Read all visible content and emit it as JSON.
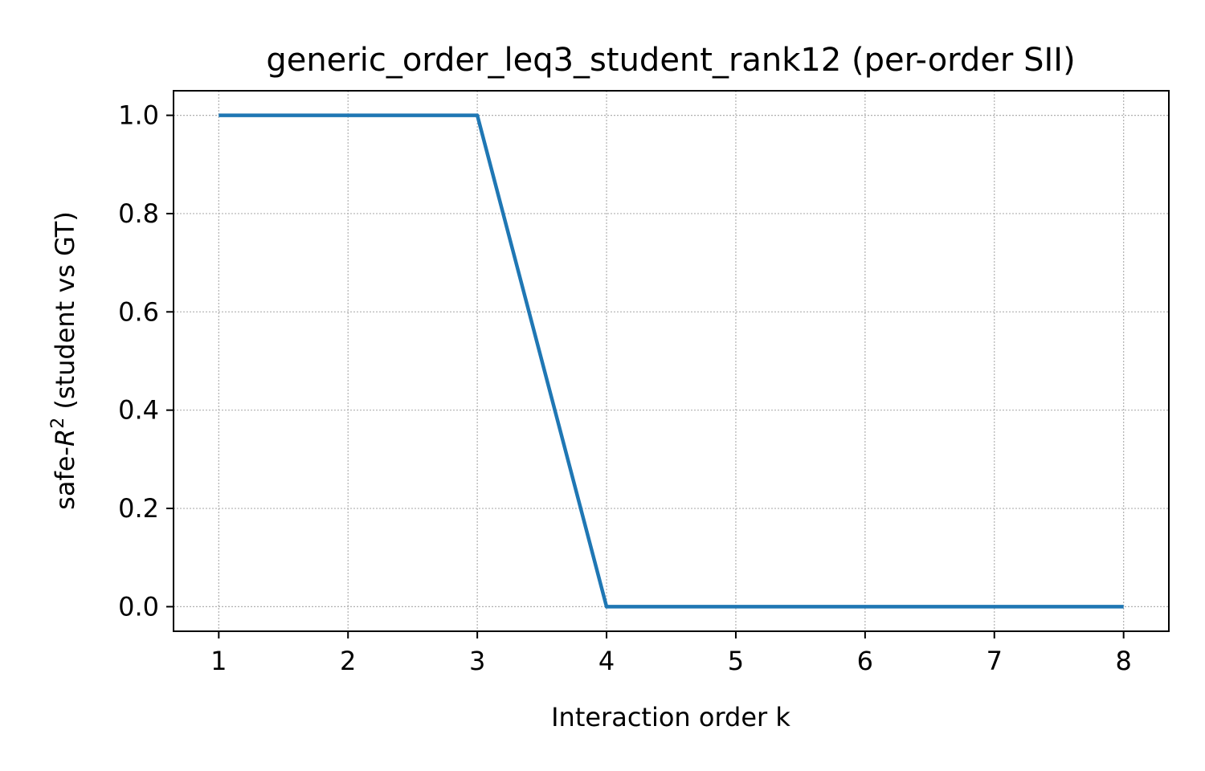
{
  "chart_data": {
    "type": "line",
    "title": "generic_order_leq3_student_rank12 (per-order SII)",
    "xlabel": "Interaction order k",
    "ylabel_prefix": "safe-",
    "ylabel_var": "R",
    "ylabel_sup": "2",
    "ylabel_suffix": " (student vs GT)",
    "x": [
      1,
      2,
      3,
      4,
      5,
      6,
      7,
      8
    ],
    "series": [
      {
        "values": [
          1.0,
          1.0,
          1.0,
          0.0,
          0.0,
          0.0,
          0.0,
          0.0
        ],
        "color": "#1f77b4"
      }
    ],
    "xlim": [
      0.65,
      8.35
    ],
    "ylim": [
      -0.05,
      1.05
    ],
    "xticks": [
      1,
      2,
      3,
      4,
      5,
      6,
      7,
      8
    ],
    "xtick_labels": [
      "1",
      "2",
      "3",
      "4",
      "5",
      "6",
      "7",
      "8"
    ],
    "yticks": [
      0.0,
      0.2,
      0.4,
      0.6,
      0.8,
      1.0
    ],
    "ytick_labels": [
      "0.0",
      "0.2",
      "0.4",
      "0.6",
      "0.8",
      "1.0"
    ],
    "grid": true,
    "grid_style": "dotted",
    "legend": "none"
  }
}
